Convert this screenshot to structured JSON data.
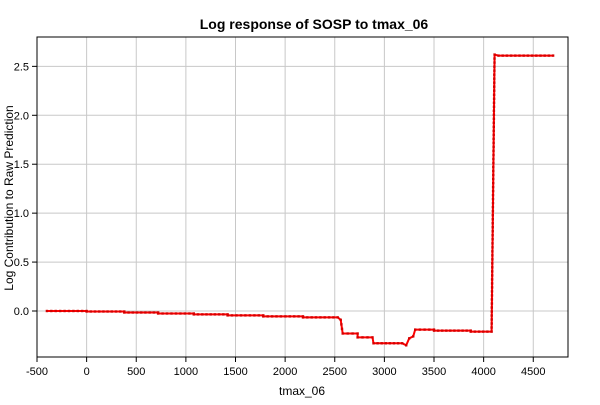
{
  "chart_data": {
    "type": "line",
    "title": "Log response of SOSP to tmax_06",
    "xlabel": "tmax_06",
    "ylabel": "Log Contribution to Raw Prediction",
    "xlim": [
      -500,
      4850
    ],
    "ylim": [
      -0.47,
      2.8
    ],
    "x_ticks": [
      -500,
      0,
      500,
      1000,
      1500,
      2000,
      2500,
      3000,
      3500,
      4000,
      4500
    ],
    "x_tick_labels": [
      "-500",
      "0",
      "500",
      "1000",
      "1500",
      "2000",
      "2500",
      "3000",
      "3500",
      "4000",
      "4500"
    ],
    "y_ticks": [
      0.0,
      0.5,
      1.0,
      1.5,
      2.0,
      2.5
    ],
    "y_tick_labels": [
      "0.0",
      "0.5",
      "1.0",
      "1.5",
      "2.0",
      "2.5"
    ],
    "grid": true,
    "series_color": "#ff0000",
    "series": [
      {
        "x": [
          -400,
          0,
          0,
          380,
          380,
          720,
          720,
          1080,
          1080,
          1420,
          1420,
          1780,
          1780,
          2180,
          2180,
          2530,
          2560,
          2580,
          2730,
          2730,
          2880,
          2890,
          3180,
          3220,
          3250,
          3290,
          3310,
          3500,
          3500,
          3870,
          3870,
          4080,
          4110,
          4150,
          4700
        ],
        "y": [
          0.0,
          0.0,
          -0.005,
          -0.005,
          -0.015,
          -0.015,
          -0.025,
          -0.025,
          -0.035,
          -0.035,
          -0.045,
          -0.045,
          -0.055,
          -0.055,
          -0.065,
          -0.065,
          -0.09,
          -0.23,
          -0.23,
          -0.27,
          -0.27,
          -0.33,
          -0.33,
          -0.35,
          -0.28,
          -0.26,
          -0.19,
          -0.19,
          -0.2,
          -0.2,
          -0.21,
          -0.21,
          2.62,
          2.61,
          2.61
        ]
      }
    ]
  }
}
